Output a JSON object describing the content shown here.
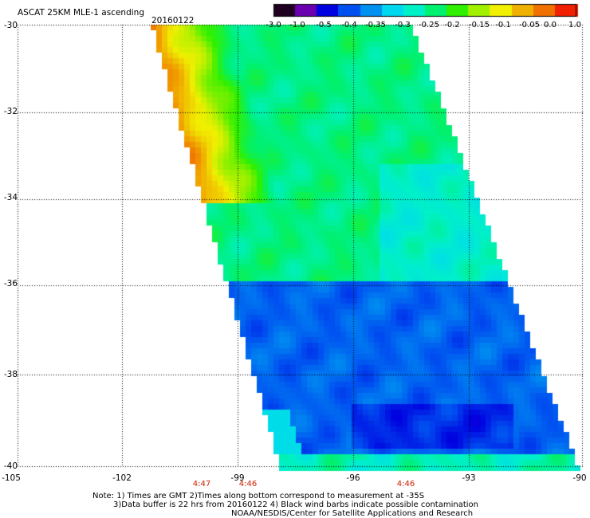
{
  "header": {
    "title": "ASCAT 25KM MLE-1 ascending",
    "date": "20160122"
  },
  "colorbar": {
    "labels": [
      "-3.0",
      "-1.0",
      "-0.5",
      "-0.4",
      "-0.35",
      "-0.3",
      "-0.25",
      "-0.2",
      "-0.15",
      "-0.1",
      "-0.05",
      "0.0",
      "1.0"
    ],
    "colors": [
      "#200020",
      "#6a00b0",
      "#0000e0",
      "#0050f0",
      "#0090f0",
      "#00d8f0",
      "#00f0c8",
      "#00f070",
      "#30f000",
      "#a0f000",
      "#f0f000",
      "#f0b000",
      "#f07000",
      "#f02000"
    ]
  },
  "axes": {
    "lat_labels": [
      "-30",
      "-32",
      "-34",
      "-36",
      "-38",
      "-40"
    ],
    "lon_labels": [
      "-105",
      "-102",
      "-99",
      "-96",
      "-93",
      "-90"
    ],
    "time_labels": [
      "4:47",
      "4:46",
      "4:46"
    ]
  },
  "notes": [
    "Note: 1) Times are GMT 2)Times along bottom correspond to measurement at -35S",
    "3)Data buffer is 22 hrs from 20160122 4) Black wind barbs indicate possible contamination",
    "NOAA/NESDIS/Center for Satellite Applications and Research"
  ]
}
